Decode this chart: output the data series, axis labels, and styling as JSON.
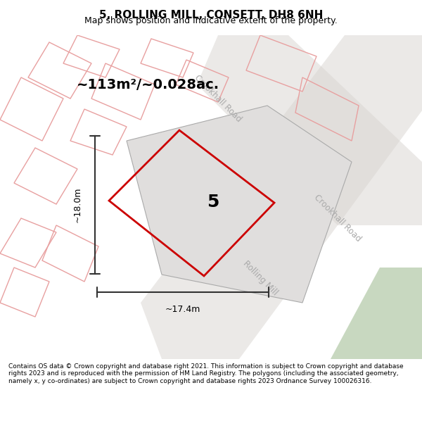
{
  "title_line1": "5, ROLLING MILL, CONSETT, DH8 6NH",
  "title_line2": "Map shows position and indicative extent of the property.",
  "area_text": "~113m²/~0.028ac.",
  "width_label": "~17.4m",
  "height_label": "~18.0m",
  "property_number": "5",
  "footer_text": "Contains OS data © Crown copyright and database right 2021. This information is subject to Crown copyright and database rights 2023 and is reproduced with the permission of HM Land Registry. The polygons (including the associated geometry, namely x, y co-ordinates) are subject to Crown copyright and database rights 2023 Ordnance Survey 100026316.",
  "bg_color": "#f5f5f5",
  "map_bg": "#f0eeec",
  "plot_fill": "#e8e8e8",
  "road_fill": "#d0cdc8",
  "green_fill": "#c8d8c0",
  "red_outline": "#cc0000",
  "pink_outline": "#e8a0a0",
  "gray_road_label": "#aaaaaa",
  "dim_line_color": "#333333"
}
